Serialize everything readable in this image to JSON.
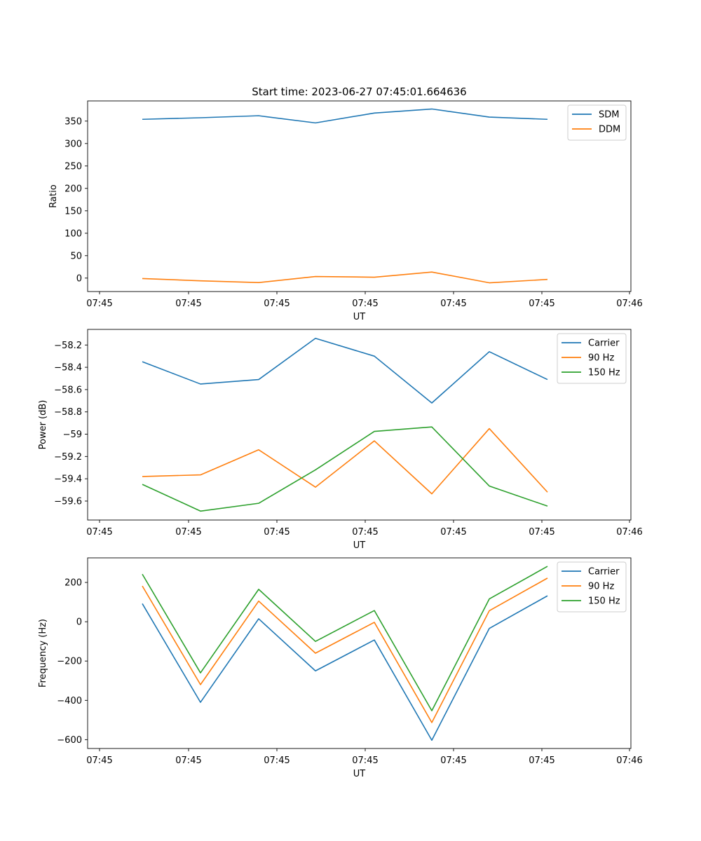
{
  "figure_title": "Start time: 2023-06-27 07:45:01.664636",
  "chart_data": [
    {
      "type": "line",
      "xlabel": "UT",
      "ylabel": "Ratio",
      "x_tick_labels": [
        "07:45",
        "07:45",
        "07:45",
        "07:45",
        "07:45",
        "07:45",
        "07:46"
      ],
      "yticks": [
        0,
        50,
        100,
        150,
        200,
        250,
        300,
        350
      ],
      "ylim": [
        -30,
        395
      ],
      "legend_position": "upper right",
      "series": [
        {
          "name": "SDM",
          "color": "#1f77b4",
          "values": [
            354,
            357.5,
            362,
            346,
            368,
            377,
            359,
            354
          ]
        },
        {
          "name": "DDM",
          "color": "#ff7f0e",
          "values": [
            -1,
            -6,
            -10,
            3.5,
            2,
            13.5,
            -10.5,
            -3
          ]
        }
      ]
    },
    {
      "type": "line",
      "xlabel": "UT",
      "ylabel": "Power (dB)",
      "x_tick_labels": [
        "07:45",
        "07:45",
        "07:45",
        "07:45",
        "07:45",
        "07:45",
        "07:46"
      ],
      "yticks": [
        -59.6,
        -59.4,
        -59.2,
        -59.0,
        -58.8,
        -58.6,
        -58.4,
        -58.2
      ],
      "ylim": [
        -59.77,
        -58.06
      ],
      "legend_position": "upper right",
      "series": [
        {
          "name": "Carrier",
          "color": "#1f77b4",
          "values": [
            -58.35,
            -58.55,
            -58.51,
            -58.14,
            -58.3,
            -58.72,
            -58.26,
            -58.51
          ]
        },
        {
          "name": "90 Hz",
          "color": "#ff7f0e",
          "values": [
            -59.38,
            -59.365,
            -59.14,
            -59.475,
            -59.06,
            -59.535,
            -58.95,
            -59.52
          ]
        },
        {
          "name": "150 Hz",
          "color": "#2ca02c",
          "values": [
            -59.45,
            -59.69,
            -59.62,
            -59.32,
            -58.975,
            -58.935,
            -59.465,
            -59.645
          ]
        }
      ]
    },
    {
      "type": "line",
      "xlabel": "UT",
      "ylabel": "Frequency (Hz)",
      "x_tick_labels": [
        "07:45",
        "07:45",
        "07:45",
        "07:45",
        "07:45",
        "07:45",
        "07:46"
      ],
      "yticks": [
        -600,
        -400,
        -200,
        0,
        200
      ],
      "ylim": [
        -645,
        325
      ],
      "legend_position": "upper right",
      "series": [
        {
          "name": "Carrier",
          "color": "#1f77b4",
          "values": [
            92,
            -410,
            15,
            -250,
            -93,
            -603,
            -34,
            132
          ]
        },
        {
          "name": "90 Hz",
          "color": "#ff7f0e",
          "values": [
            182,
            -320,
            105,
            -160,
            -3,
            -513,
            56,
            222
          ]
        },
        {
          "name": "150 Hz",
          "color": "#2ca02c",
          "values": [
            242,
            -260,
            165,
            -100,
            57,
            -453,
            116,
            282
          ]
        }
      ]
    }
  ]
}
